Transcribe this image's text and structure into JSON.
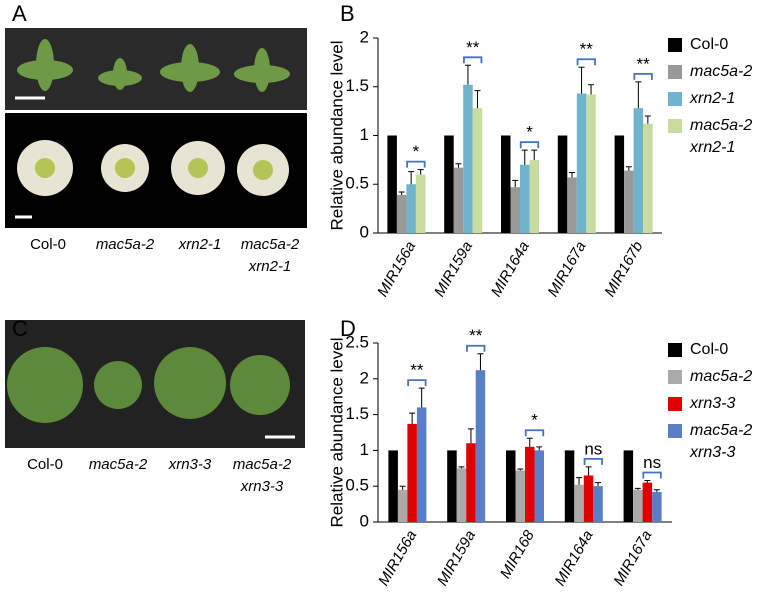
{
  "panel_labels": [
    "A",
    "B",
    "C",
    "D"
  ],
  "photo_a": {
    "captions": [
      "Col-0",
      "mac5a-2",
      "xrn2-1",
      "mac5a-2 xrn2-1"
    ]
  },
  "photo_c": {
    "captions": [
      "Col-0",
      "mac5a-2",
      "xrn3-3",
      "mac5a-2 xrn3-3"
    ]
  },
  "chart_data": [
    {
      "type": "bar",
      "y_label": "Relative abundance level",
      "categories": [
        "MIR156a",
        "MIR159a",
        "MIR164a",
        "MIR167a",
        "MIR167b"
      ],
      "series": [
        {
          "name": "Col-0",
          "color": "#000000",
          "values": [
            1,
            1,
            1,
            1,
            1
          ]
        },
        {
          "name": "mac5a-2",
          "color": "#999999",
          "values": [
            0.39,
            0.67,
            0.47,
            0.57,
            0.64
          ],
          "errors": [
            0.03,
            0.04,
            0.07,
            0.05,
            0.04
          ]
        },
        {
          "name": "xrn2-1",
          "color": "#6fb3cc",
          "values": [
            0.5,
            1.52,
            0.7,
            1.43,
            1.28
          ],
          "errors": [
            0.13,
            0.2,
            0.15,
            0.27,
            0.27
          ]
        },
        {
          "name": "mac5a-2 xrn2-1",
          "color": "#c8dca0",
          "values": [
            0.6,
            1.28,
            0.75,
            1.42,
            1.12
          ],
          "errors": [
            0.05,
            0.18,
            0.1,
            0.1,
            0.08
          ]
        }
      ],
      "annotations": [
        "*",
        "**",
        "*",
        "**",
        "**"
      ],
      "ylim": [
        0,
        2
      ],
      "yticks": [
        0,
        0.5,
        1,
        1.5,
        2
      ]
    },
    {
      "type": "bar",
      "y_label": "Relative abundance level",
      "categories": [
        "MIR156a",
        "MIR159a",
        "MIR168",
        "MIR164a",
        "MIR167a"
      ],
      "series": [
        {
          "name": "Col-0",
          "color": "#000000",
          "values": [
            1,
            1,
            1,
            1,
            1
          ]
        },
        {
          "name": "mac5a-2",
          "color": "#aaaaaa",
          "values": [
            0.45,
            0.75,
            0.72,
            0.52,
            0.45
          ],
          "errors": [
            0.05,
            0.02,
            0.02,
            0.1,
            0.02
          ]
        },
        {
          "name": "xrn3-3",
          "color": "#e00000",
          "values": [
            1.37,
            1.1,
            1.05,
            0.65,
            0.55
          ],
          "errors": [
            0.15,
            0.2,
            0.12,
            0.12,
            0.03
          ]
        },
        {
          "name": "mac5a-2 xrn3-3",
          "color": "#5b7fc7",
          "values": [
            1.6,
            2.12,
            1.0,
            0.5,
            0.42
          ],
          "errors": [
            0.27,
            0.23,
            0.05,
            0.05,
            0.03
          ]
        }
      ],
      "annotations": [
        "**",
        "**",
        "*",
        "ns",
        "ns"
      ],
      "ylim": [
        0,
        2.5
      ],
      "yticks": [
        0,
        0.5,
        1,
        1.5,
        2,
        2.5
      ]
    }
  ]
}
